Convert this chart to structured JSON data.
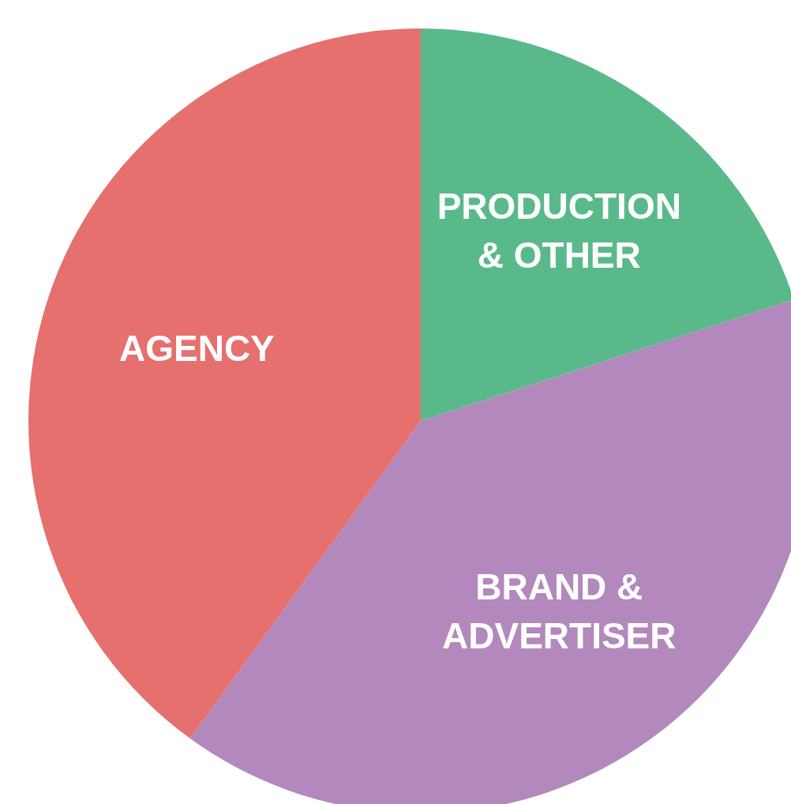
{
  "chart_data": {
    "type": "pie",
    "categories": [
      "PRODUCTION & OTHER",
      "BRAND & ADVERTISER",
      "AGENCY"
    ],
    "values": [
      20,
      40,
      40
    ],
    "colors": [
      "#5ab98a",
      "#b388bc",
      "#e5706e"
    ]
  }
}
